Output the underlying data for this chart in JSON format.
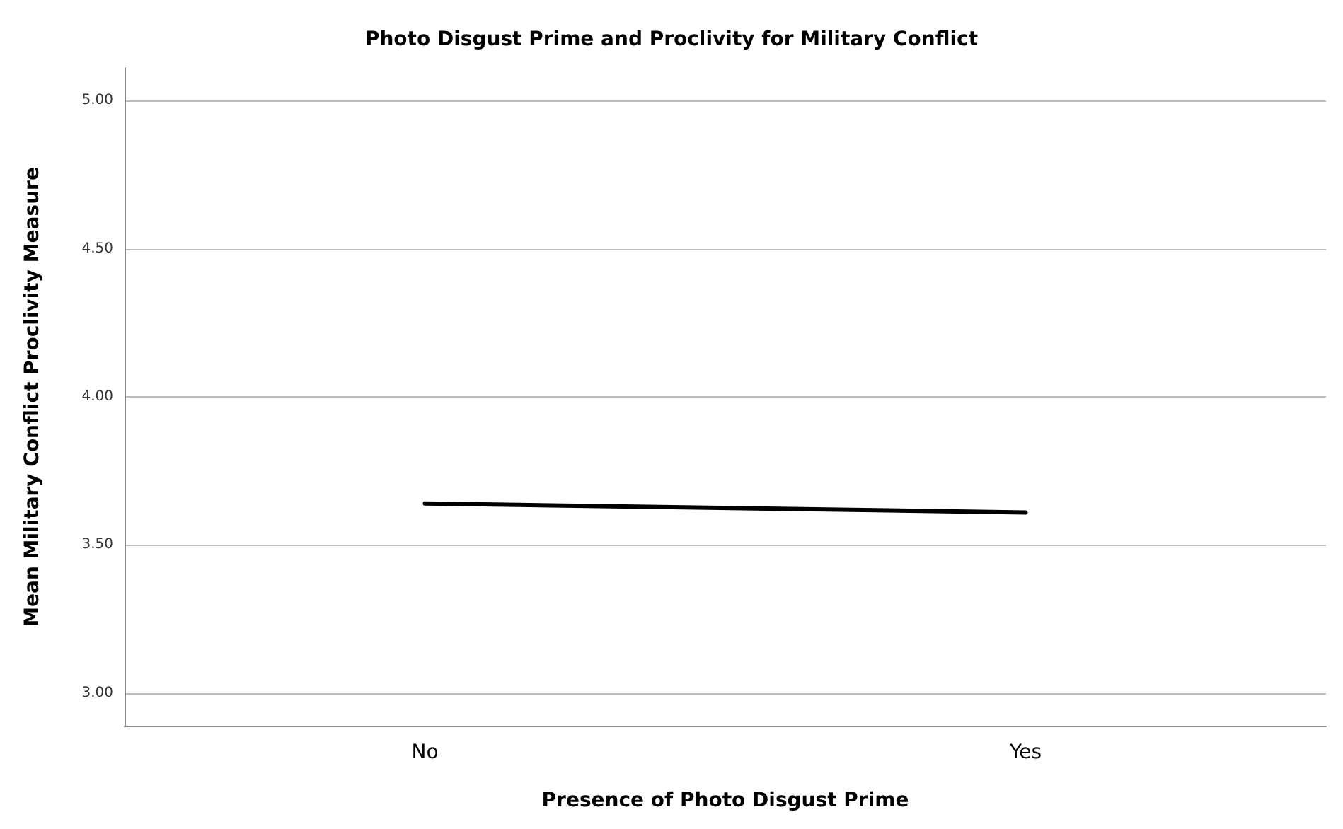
{
  "chart_data": {
    "type": "line",
    "title": "Photo Disgust Prime and Proclivity for Military Conflict",
    "xlabel": "Presence of Photo Disgust Prime",
    "ylabel": "Mean Military Conflict Proclivity Measure",
    "categories": [
      "No",
      "Yes"
    ],
    "series": [
      {
        "color": "#000000",
        "values": [
          3.64,
          3.61
        ]
      }
    ],
    "ylim": [
      2.89,
      5.11
    ],
    "yticks": [
      {
        "value": 3,
        "label": "3.00"
      },
      {
        "value": 3.5,
        "label": "3.50"
      },
      {
        "value": 4,
        "label": "4.00"
      },
      {
        "value": 4.5,
        "label": "4.50"
      },
      {
        "value": 5,
        "label": "5.00"
      }
    ],
    "grid": "y",
    "marker": "none",
    "line_style": "solid"
  }
}
